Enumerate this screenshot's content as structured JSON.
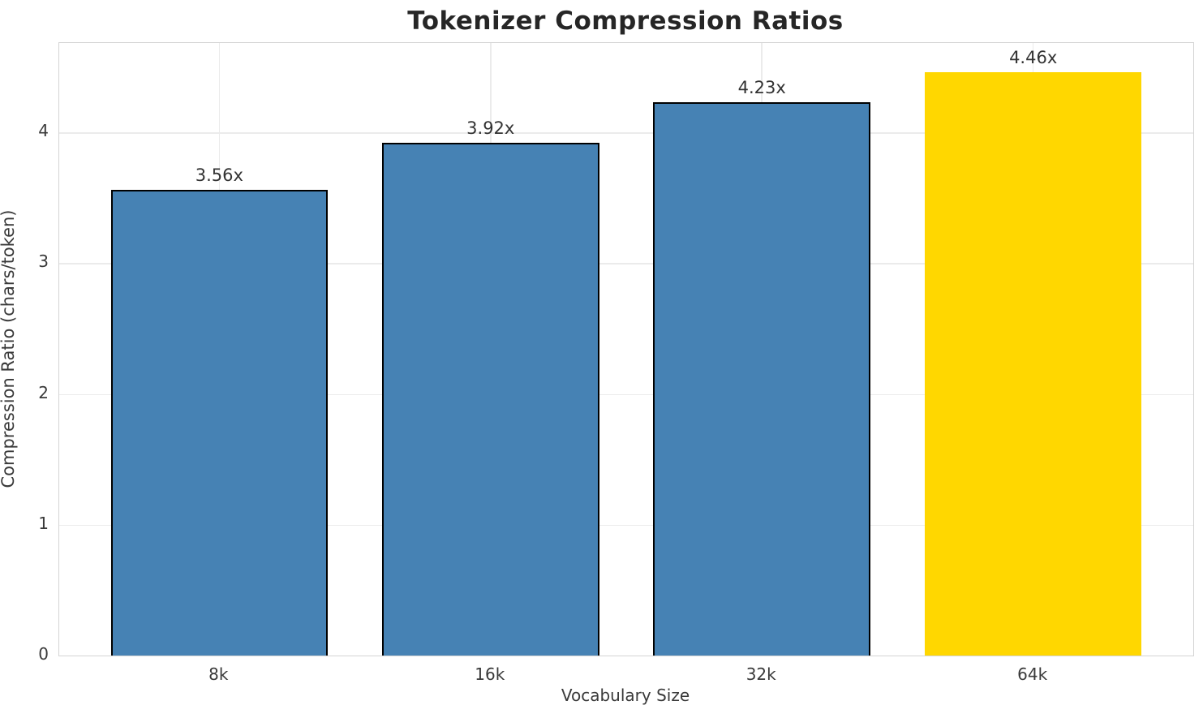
{
  "title": "Tokenizer Compression Ratios",
  "chart_data": {
    "type": "bar",
    "title": "Tokenizer Compression Ratios",
    "xlabel": "Vocabulary Size",
    "ylabel": "Compression Ratio (chars/token)",
    "categories": [
      "8k",
      "16k",
      "32k",
      "64k"
    ],
    "values": [
      3.56,
      3.92,
      4.23,
      4.46
    ],
    "bar_labels": [
      "3.56x",
      "3.92x",
      "4.23x",
      "4.46x"
    ],
    "yticks": [
      0,
      1,
      2,
      3,
      4
    ],
    "ylim": [
      0,
      4.683
    ],
    "grid": true,
    "legend": "none",
    "bar_colors": [
      "#4682B4",
      "#4682B4",
      "#4682B4",
      "#FFD700"
    ],
    "bar_edge_colors": [
      "#000000",
      "#000000",
      "#000000",
      "none"
    ],
    "highlight_index": 3
  },
  "colors": {
    "bar_blue": "#4682B4",
    "bar_gold": "#FFD700",
    "bar_edge": "#000000",
    "gridline": "#ebebeb",
    "spine": "#d4d4d4",
    "title_text": "#262626",
    "tick_text": "#3a3a3a"
  }
}
